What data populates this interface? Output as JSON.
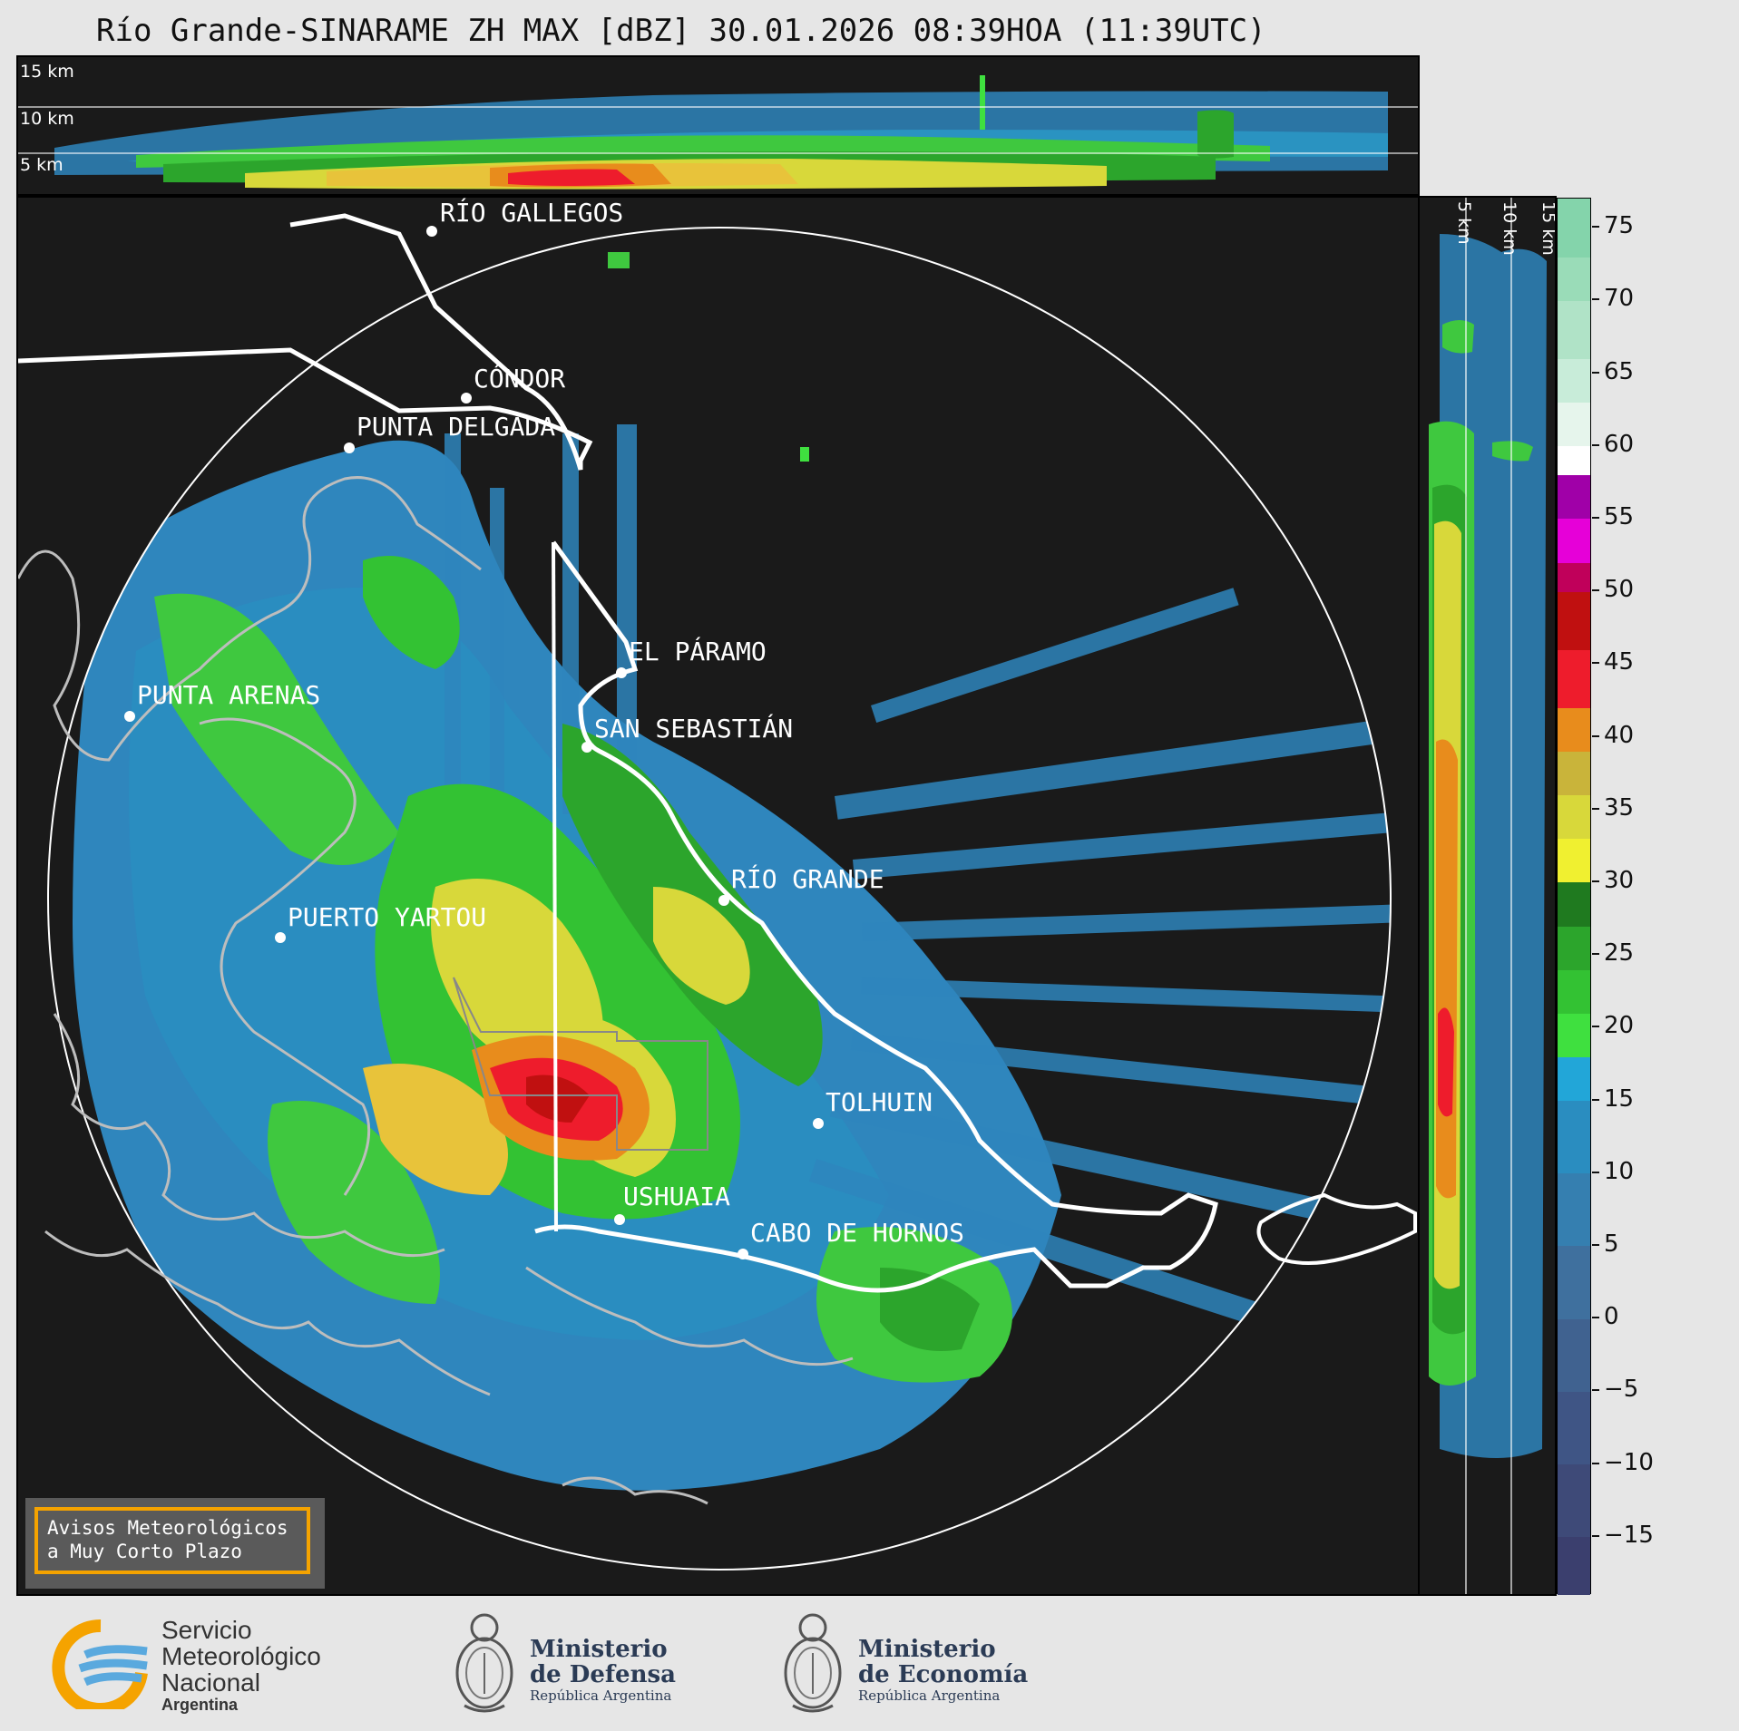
{
  "title": "Río Grande-SINARAME ZH MAX [dBZ] 30.01.2026 08:39HOA (11:39UTC)",
  "top_panel": {
    "height_labels": [
      "15 km",
      "10 km",
      "5 km"
    ]
  },
  "right_panel": {
    "height_labels": [
      "5 km",
      "10 km",
      "15 km"
    ]
  },
  "colorbar": {
    "unit": "dBZ",
    "ticks": [
      75,
      70,
      65,
      60,
      55,
      50,
      45,
      40,
      35,
      30,
      25,
      20,
      15,
      10,
      5,
      0,
      -5,
      -10,
      -15
    ],
    "tick_labels": [
      "75",
      "70",
      "65",
      "60",
      "55",
      "50",
      "45",
      "40",
      "35",
      "30",
      "25",
      "20",
      "15",
      "10",
      "5",
      "0",
      "−5",
      "−10",
      "−15"
    ],
    "range": [
      -19,
      77
    ],
    "bands": [
      {
        "from": -19,
        "to": -15,
        "color": "#3b3f6e"
      },
      {
        "from": -15,
        "to": -10,
        "color": "#3e4a78"
      },
      {
        "from": -10,
        "to": -5,
        "color": "#3f5585"
      },
      {
        "from": -5,
        "to": 0,
        "color": "#406290"
      },
      {
        "from": 0,
        "to": 5,
        "color": "#3f709e"
      },
      {
        "from": 5,
        "to": 10,
        "color": "#357fb0"
      },
      {
        "from": 10,
        "to": 15,
        "color": "#2a8dc0"
      },
      {
        "from": 15,
        "to": 18,
        "color": "#22a6d8"
      },
      {
        "from": 18,
        "to": 21,
        "color": "#3fe03f"
      },
      {
        "from": 21,
        "to": 24,
        "color": "#33c233"
      },
      {
        "from": 24,
        "to": 27,
        "color": "#2ca52c"
      },
      {
        "from": 27,
        "to": 30,
        "color": "#1f7a1f"
      },
      {
        "from": 30,
        "to": 33,
        "color": "#f0f030"
      },
      {
        "from": 33,
        "to": 36,
        "color": "#d8d83a"
      },
      {
        "from": 36,
        "to": 39,
        "color": "#c9b43a"
      },
      {
        "from": 39,
        "to": 42,
        "color": "#e88c1c"
      },
      {
        "from": 42,
        "to": 46,
        "color": "#ee1c2c"
      },
      {
        "from": 46,
        "to": 50,
        "color": "#c01010"
      },
      {
        "from": 50,
        "to": 52,
        "color": "#c0005a"
      },
      {
        "from": 52,
        "to": 55,
        "color": "#e600d8"
      },
      {
        "from": 55,
        "to": 58,
        "color": "#a000a8"
      },
      {
        "from": 58,
        "to": 60,
        "color": "#ffffff"
      },
      {
        "from": 60,
        "to": 63,
        "color": "#e6f5ec"
      },
      {
        "from": 63,
        "to": 66,
        "color": "#c8ecd9"
      },
      {
        "from": 66,
        "to": 70,
        "color": "#b0e3c7"
      },
      {
        "from": 70,
        "to": 73,
        "color": "#9adcb8"
      },
      {
        "from": 73,
        "to": 77,
        "color": "#84d4ab"
      }
    ]
  },
  "cities": [
    {
      "name": "RÍO GALLEGOS"
    },
    {
      "name": "CÓNDOR"
    },
    {
      "name": "PUNTA DELGADA"
    },
    {
      "name": "EL PÁRAMO"
    },
    {
      "name": "PUNTA ARENAS"
    },
    {
      "name": "SAN SEBASTIÁN"
    },
    {
      "name": "RÍO GRANDE"
    },
    {
      "name": "PUERTO YARTOU"
    },
    {
      "name": "TOLHUIN"
    },
    {
      "name": "USHUAIA"
    },
    {
      "name": "CABO DE HORNOS"
    }
  ],
  "avisos": {
    "line1": "Avisos Meteorológicos",
    "line2": "a Muy Corto Plazo",
    "border_color": "#f5a300"
  },
  "logos": {
    "smn": {
      "line1": "Servicio",
      "line2": "Meteorológico",
      "line3": "Nacional",
      "line4": "Argentina",
      "icon": "smn-logo-icon"
    },
    "defensa": {
      "line1": "Ministerio",
      "line2": "de Defensa",
      "line3": "República Argentina",
      "icon": "coat-of-arms-icon"
    },
    "economia": {
      "line1": "Ministerio",
      "line2": "de Economía",
      "line3": "República Argentina",
      "icon": "coat-of-arms-icon"
    }
  }
}
